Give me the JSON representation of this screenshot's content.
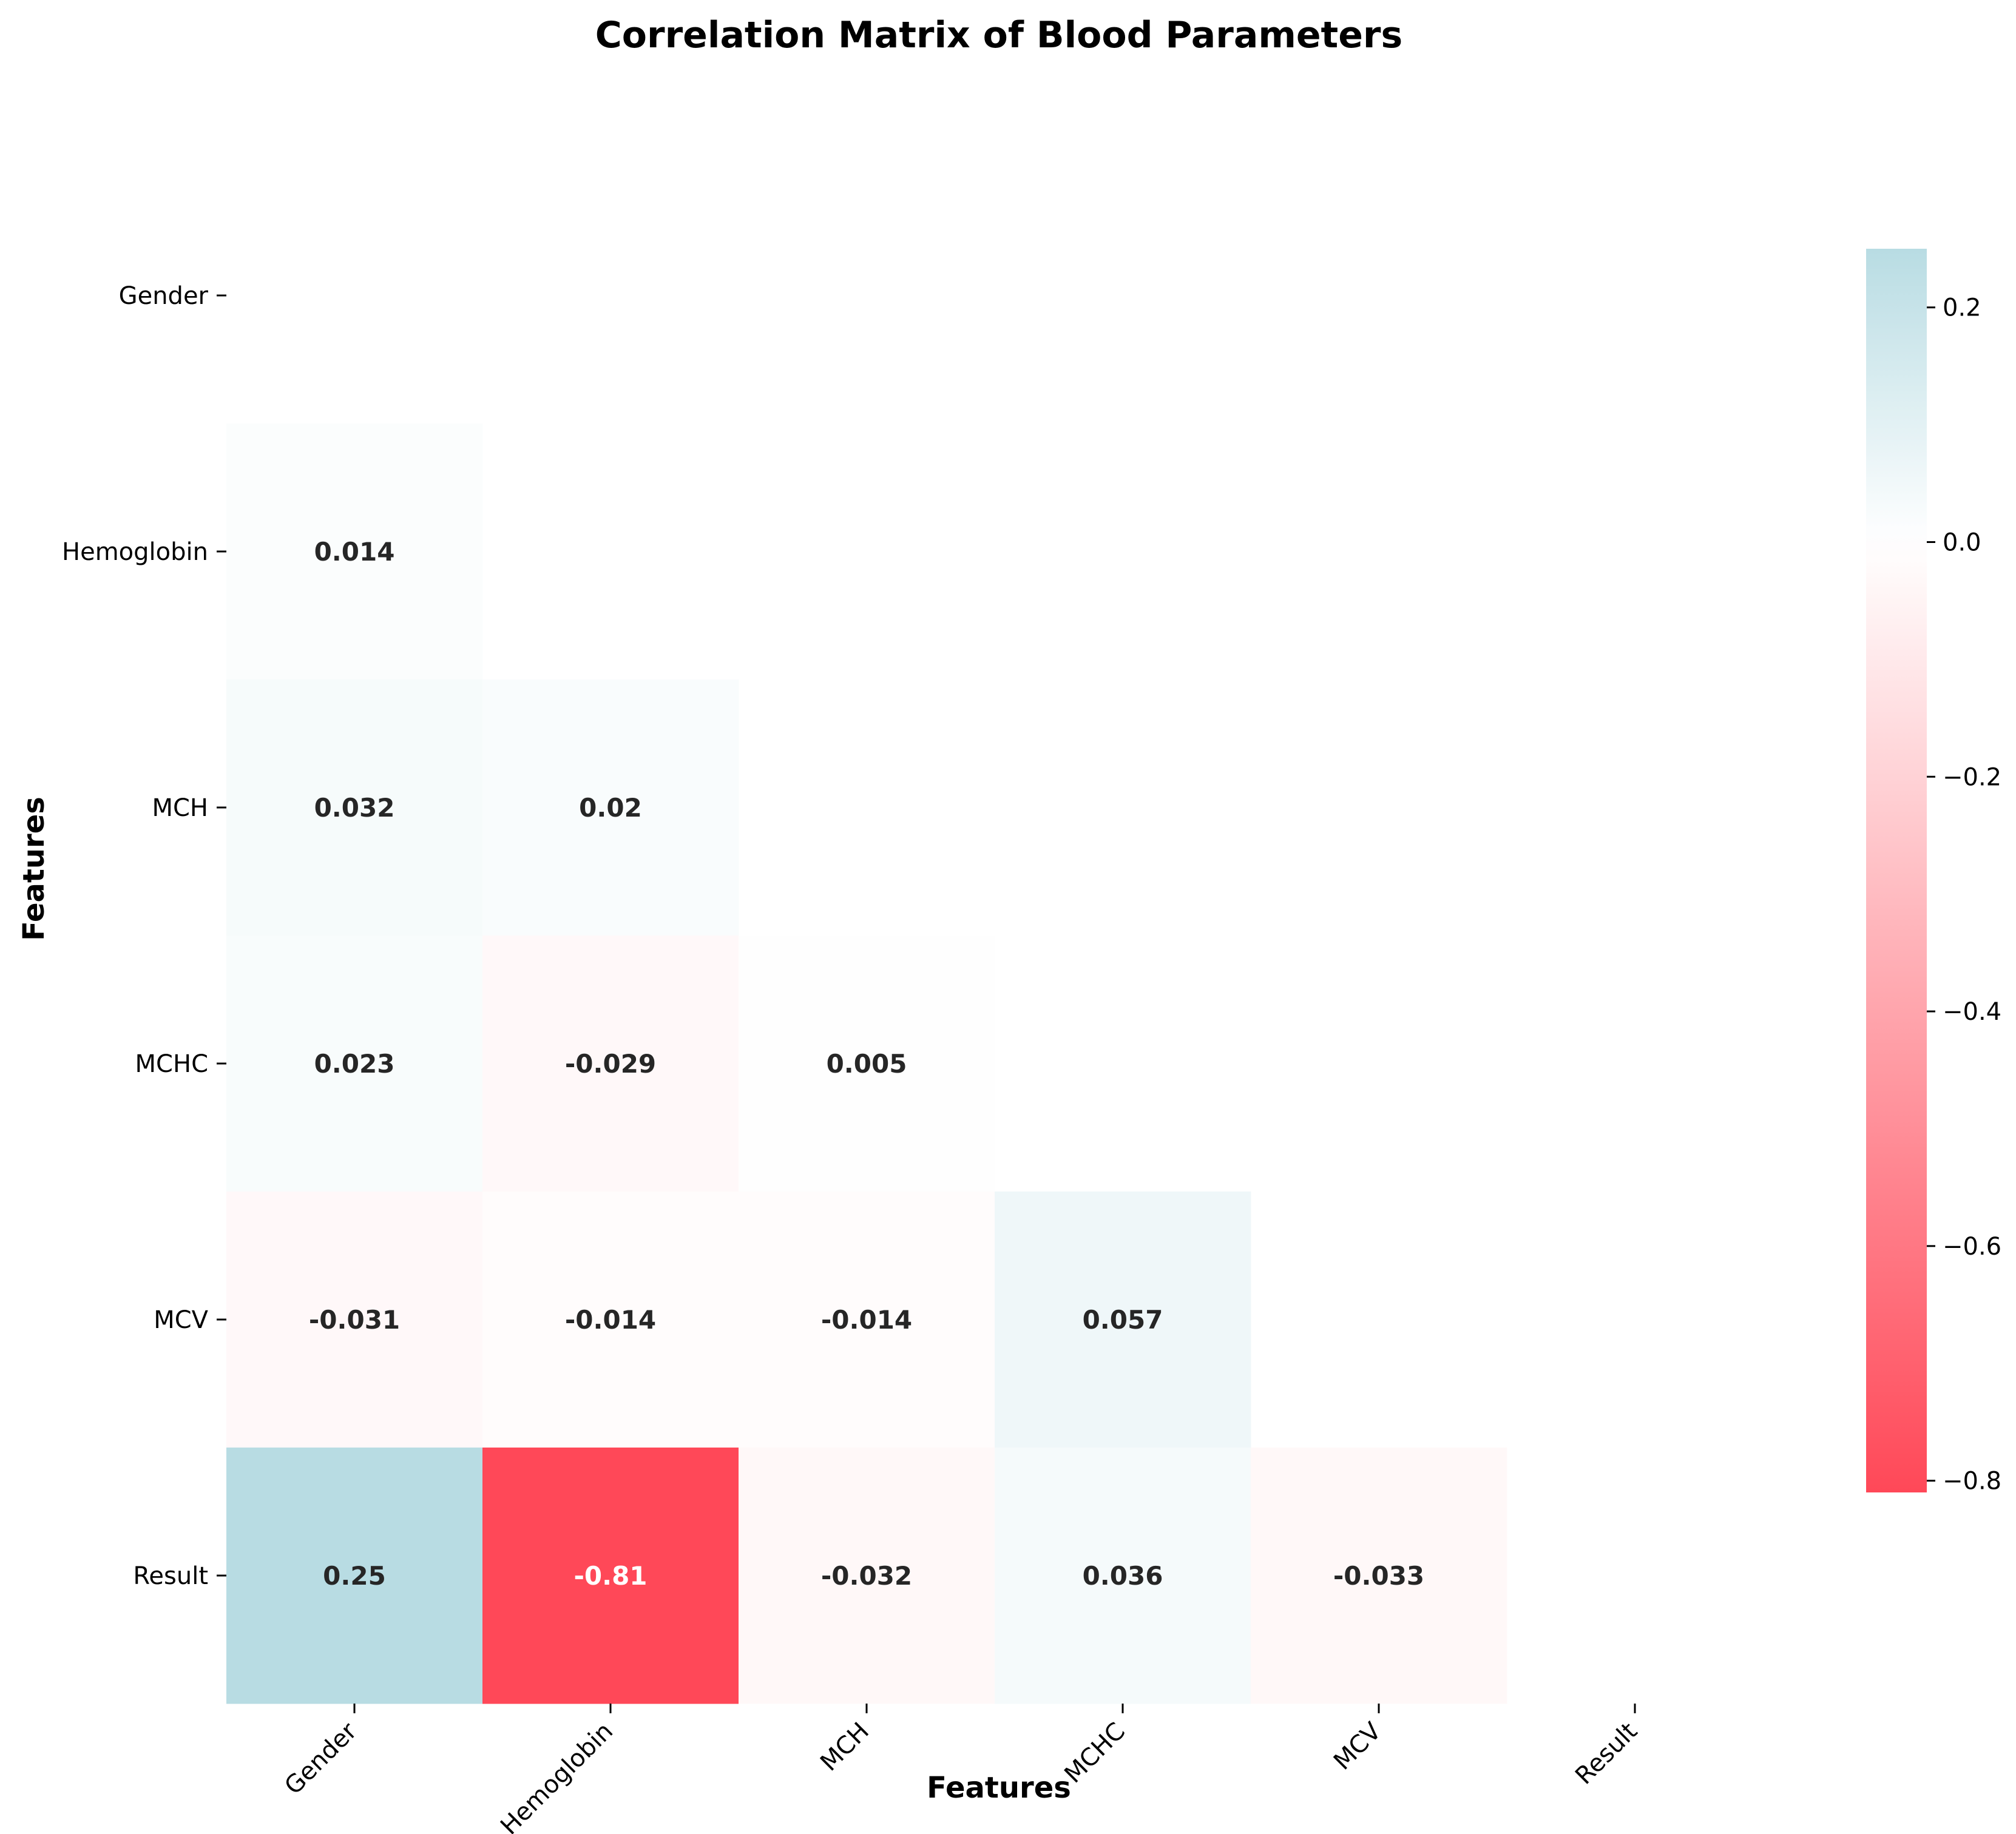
{
  "chart_data": {
    "type": "heatmap",
    "title": "Correlation Matrix of Blood Parameters",
    "xlabel": "Features",
    "ylabel": "Features",
    "features": [
      "Gender",
      "Hemoglobin",
      "MCH",
      "MCHC",
      "MCV",
      "Result"
    ],
    "mask": "upper triangle including diagonal",
    "cells": [
      {
        "row": "Hemoglobin",
        "col": "Gender",
        "value": 0.014,
        "label": "0.014"
      },
      {
        "row": "MCH",
        "col": "Gender",
        "value": 0.032,
        "label": "0.032"
      },
      {
        "row": "MCH",
        "col": "Hemoglobin",
        "value": 0.02,
        "label": "0.02"
      },
      {
        "row": "MCHC",
        "col": "Gender",
        "value": 0.023,
        "label": "0.023"
      },
      {
        "row": "MCHC",
        "col": "Hemoglobin",
        "value": -0.029,
        "label": "-0.029"
      },
      {
        "row": "MCHC",
        "col": "MCH",
        "value": 0.005,
        "label": "0.005"
      },
      {
        "row": "MCV",
        "col": "Gender",
        "value": -0.031,
        "label": "-0.031"
      },
      {
        "row": "MCV",
        "col": "Hemoglobin",
        "value": -0.014,
        "label": "-0.014"
      },
      {
        "row": "MCV",
        "col": "MCH",
        "value": -0.014,
        "label": "-0.014"
      },
      {
        "row": "MCV",
        "col": "MCHC",
        "value": 0.057,
        "label": "0.057"
      },
      {
        "row": "Result",
        "col": "Gender",
        "value": 0.25,
        "label": "0.25"
      },
      {
        "row": "Result",
        "col": "Hemoglobin",
        "value": -0.81,
        "label": "-0.81"
      },
      {
        "row": "Result",
        "col": "MCH",
        "value": -0.032,
        "label": "-0.032"
      },
      {
        "row": "Result",
        "col": "MCHC",
        "value": 0.036,
        "label": "0.036"
      },
      {
        "row": "Result",
        "col": "MCV",
        "value": -0.033,
        "label": "-0.033"
      }
    ],
    "colorbar": {
      "vmin": -0.81,
      "vmax": 0.25,
      "ticks": [
        0.2,
        0.0,
        -0.2,
        -0.4,
        -0.6,
        -0.8
      ],
      "tick_labels": [
        "0.2",
        "0.0",
        "−0.2",
        "−0.4",
        "−0.6",
        "−0.8"
      ],
      "colors": {
        "negative": "#ff4858",
        "zero": "#ffffff",
        "positive": "#b8dce3"
      }
    },
    "grid": false,
    "legend": "colorbar right"
  }
}
